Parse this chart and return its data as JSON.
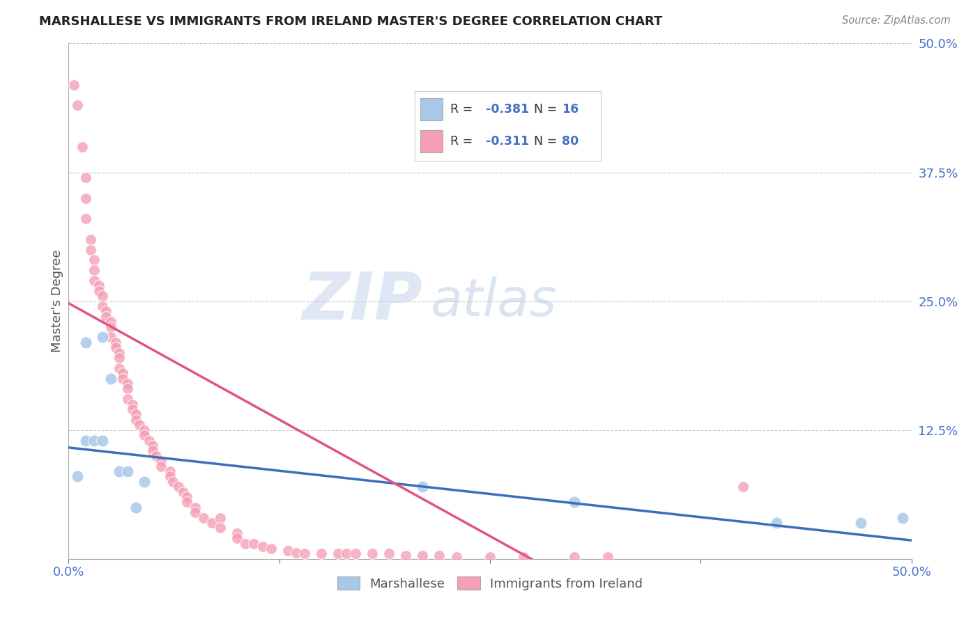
{
  "title": "MARSHALLESE VS IMMIGRANTS FROM IRELAND MASTER'S DEGREE CORRELATION CHART",
  "source": "Source: ZipAtlas.com",
  "ylabel": "Master's Degree",
  "x_min": 0.0,
  "x_max": 0.5,
  "y_min": 0.0,
  "y_max": 0.5,
  "x_ticks": [
    0.0,
    0.125,
    0.25,
    0.375,
    0.5
  ],
  "x_tick_labels": [
    "0.0%",
    "",
    "",
    "",
    "50.0%"
  ],
  "y_ticks": [
    0.0,
    0.125,
    0.25,
    0.375,
    0.5
  ],
  "y_tick_labels": [
    "",
    "12.5%",
    "25.0%",
    "37.5%",
    "50.0%"
  ],
  "blue_color": "#a8c8e8",
  "pink_color": "#f4a0b5",
  "blue_line_color": "#3a6fbc",
  "pink_line_color": "#e05580",
  "watermark_zip": "ZIP",
  "watermark_atlas": "atlas",
  "blue_scatter_x": [
    0.005,
    0.01,
    0.01,
    0.015,
    0.02,
    0.02,
    0.025,
    0.03,
    0.035,
    0.04,
    0.045,
    0.21,
    0.3,
    0.42,
    0.47,
    0.495
  ],
  "blue_scatter_y": [
    0.08,
    0.21,
    0.115,
    0.115,
    0.215,
    0.115,
    0.175,
    0.085,
    0.085,
    0.05,
    0.075,
    0.07,
    0.055,
    0.035,
    0.035,
    0.04
  ],
  "pink_scatter_x": [
    0.003,
    0.005,
    0.008,
    0.01,
    0.01,
    0.01,
    0.013,
    0.013,
    0.015,
    0.015,
    0.015,
    0.018,
    0.018,
    0.02,
    0.02,
    0.022,
    0.022,
    0.025,
    0.025,
    0.025,
    0.028,
    0.028,
    0.03,
    0.03,
    0.03,
    0.032,
    0.032,
    0.035,
    0.035,
    0.035,
    0.038,
    0.038,
    0.04,
    0.04,
    0.042,
    0.045,
    0.045,
    0.048,
    0.05,
    0.05,
    0.052,
    0.055,
    0.055,
    0.06,
    0.06,
    0.062,
    0.065,
    0.068,
    0.07,
    0.07,
    0.075,
    0.075,
    0.08,
    0.085,
    0.09,
    0.09,
    0.1,
    0.1,
    0.105,
    0.11,
    0.115,
    0.12,
    0.13,
    0.135,
    0.14,
    0.15,
    0.16,
    0.165,
    0.17,
    0.18,
    0.19,
    0.2,
    0.21,
    0.22,
    0.23,
    0.25,
    0.27,
    0.3,
    0.32,
    0.4
  ],
  "pink_scatter_y": [
    0.46,
    0.44,
    0.4,
    0.37,
    0.35,
    0.33,
    0.31,
    0.3,
    0.29,
    0.28,
    0.27,
    0.265,
    0.26,
    0.255,
    0.245,
    0.24,
    0.235,
    0.23,
    0.225,
    0.215,
    0.21,
    0.205,
    0.2,
    0.195,
    0.185,
    0.18,
    0.175,
    0.17,
    0.165,
    0.155,
    0.15,
    0.145,
    0.14,
    0.135,
    0.13,
    0.125,
    0.12,
    0.115,
    0.11,
    0.105,
    0.1,
    0.095,
    0.09,
    0.085,
    0.08,
    0.075,
    0.07,
    0.065,
    0.06,
    0.055,
    0.05,
    0.045,
    0.04,
    0.035,
    0.04,
    0.03,
    0.025,
    0.02,
    0.015,
    0.015,
    0.012,
    0.01,
    0.008,
    0.006,
    0.005,
    0.005,
    0.005,
    0.005,
    0.005,
    0.005,
    0.005,
    0.003,
    0.003,
    0.003,
    0.002,
    0.002,
    0.002,
    0.002,
    0.002,
    0.07
  ],
  "blue_trendline_x": [
    0.0,
    0.5
  ],
  "blue_trendline_y": [
    0.108,
    0.018
  ],
  "pink_trendline_x": [
    0.0,
    0.28
  ],
  "pink_trendline_y": [
    0.248,
    -0.005
  ]
}
